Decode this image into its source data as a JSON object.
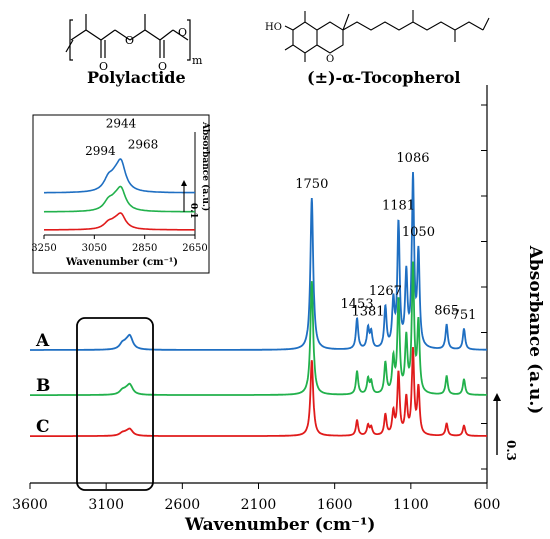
{
  "chart_data": {
    "type": "line",
    "xlabel": "Wavenumber (cm⁻¹)",
    "ylabel": "Absorbance (a.u.)",
    "xlim": [
      3600,
      600
    ],
    "x_reversed": true,
    "x_ticks": [
      "3600",
      "3100",
      "2600",
      "2100",
      "1600",
      "1100",
      "600"
    ],
    "scale_bar": "0.3",
    "series": [
      {
        "name": "A",
        "color": "#1f6fc2",
        "baseline": 0.0,
        "scale": 1.0
      },
      {
        "name": "B",
        "color": "#22b14c",
        "baseline": -0.22,
        "scale": 0.75
      },
      {
        "name": "C",
        "color": "#e01b1b",
        "baseline": -0.42,
        "scale": 0.5
      }
    ],
    "bands": [
      {
        "x": 2994,
        "h": 0.025
      },
      {
        "x": 2944,
        "h": 0.06
      },
      {
        "x": 2968,
        "h": 0.02
      },
      {
        "x": 1750,
        "h": 0.74
      },
      {
        "x": 1453,
        "h": 0.15
      },
      {
        "x": 1381,
        "h": 0.1
      },
      {
        "x": 1360,
        "h": 0.08
      },
      {
        "x": 1267,
        "h": 0.2
      },
      {
        "x": 1215,
        "h": 0.22
      },
      {
        "x": 1181,
        "h": 0.6
      },
      {
        "x": 1130,
        "h": 0.35
      },
      {
        "x": 1086,
        "h": 0.82
      },
      {
        "x": 1050,
        "h": 0.45
      },
      {
        "x": 865,
        "h": 0.12
      },
      {
        "x": 751,
        "h": 0.1
      }
    ],
    "peak_labels": [
      "1750",
      "1453",
      "1381",
      "1267",
      "1181",
      "1086",
      "1050",
      "865",
      "751"
    ],
    "inset": {
      "xlim": [
        3250,
        2650
      ],
      "x_ticks": [
        "3250",
        "3050",
        "2850",
        "2650"
      ],
      "xlabel": "Wavenumber (cm⁻¹)",
      "ylabel": "Absorbance (a.u.)",
      "scale_bar": "0.1",
      "peak_labels": [
        "2994",
        "2944",
        "2968"
      ]
    }
  },
  "structures": {
    "polylactide": {
      "name": "Polylactide",
      "repeat_subscript": "m"
    },
    "tocopherol": {
      "name": "(±)-α-Tocopherol",
      "hydroxyl_label": "HO"
    }
  }
}
